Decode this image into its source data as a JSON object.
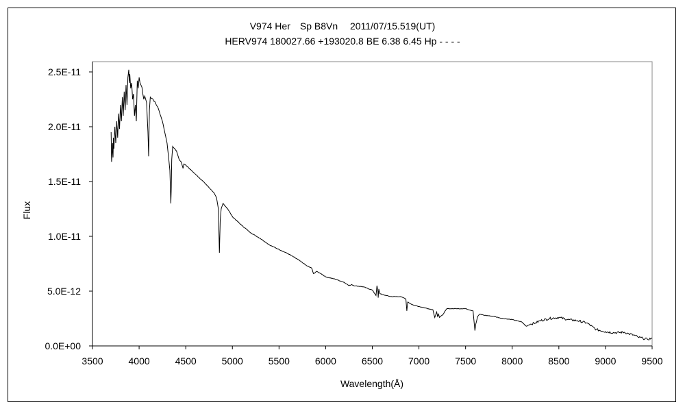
{
  "chart_data": {
    "type": "line",
    "title": "V974 Her　Sp B8Vn　 2011/07/15.519(UT)",
    "subtitle": "HERV974 180027.66 +193020.8 BE 6.38 6.45 Hp - - - -",
    "xlabel": "Wavelength(Å)",
    "ylabel": "Flux",
    "xlim": [
      3500,
      9500
    ],
    "ylim": [
      0,
      2.5e-11
    ],
    "xticks": [
      "3500",
      "4000",
      "4500",
      "5000",
      "5500",
      "6000",
      "6500",
      "7000",
      "7500",
      "8000",
      "8500",
      "9000",
      "9500"
    ],
    "yticks": [
      "0.0E+00",
      "5.0E-12",
      "1.0E-11",
      "1.5E-11",
      "2.0E-11",
      "2.5E-11"
    ],
    "grid": false,
    "series": [
      {
        "x": [
          3700,
          3705,
          3710,
          3715,
          3720,
          3725,
          3730,
          3740,
          3750,
          3760,
          3770,
          3780,
          3790,
          3800,
          3810,
          3820,
          3830,
          3840,
          3850,
          3860,
          3870,
          3880,
          3889,
          3895,
          3900,
          3910,
          3920,
          3930,
          3940,
          3950,
          3960,
          3970,
          3980,
          3990,
          4000,
          4010,
          4020,
          4030,
          4040,
          4050,
          4060,
          4080,
          4095,
          4102,
          4110,
          4120,
          4150,
          4200,
          4250,
          4300,
          4330,
          4340,
          4345,
          4350,
          4360,
          4380,
          4400,
          4430,
          4450,
          4471,
          4480,
          4500,
          4600,
          4700,
          4800,
          4830,
          4850,
          4861,
          4870,
          4880,
          4900,
          4950,
          5000,
          5100,
          5200,
          5300,
          5400,
          5500,
          5600,
          5700,
          5800,
          5850,
          5870,
          5890,
          5900,
          5950,
          6000,
          6100,
          6200,
          6250,
          6280,
          6300,
          6400,
          6500,
          6540,
          6550,
          6560,
          6563,
          6570,
          6580,
          6600,
          6700,
          6800,
          6860,
          6870,
          6880,
          6900,
          6950,
          7000,
          7100,
          7150,
          7170,
          7190,
          7200,
          7210,
          7220,
          7250,
          7300,
          7400,
          7500,
          7580,
          7600,
          7610,
          7630,
          7650,
          7700,
          7800,
          7900,
          8000,
          8100,
          8150,
          8200,
          8250,
          8300,
          8400,
          8500,
          8600,
          8700,
          8800,
          8900,
          9000,
          9100,
          9200,
          9250,
          9300,
          9350,
          9400,
          9450,
          9500
        ],
        "y": [
          1.95e-11,
          1.68e-11,
          1.75e-11,
          1.85e-11,
          1.72e-11,
          1.9e-11,
          1.8e-11,
          2e-11,
          1.85e-11,
          2.05e-11,
          1.9e-11,
          2.12e-11,
          1.98e-11,
          2.2e-11,
          2.05e-11,
          2.27e-11,
          2.1e-11,
          2.32e-11,
          2.15e-11,
          2.38e-11,
          2.2e-11,
          2.45e-11,
          2.52e-11,
          2.4e-11,
          2.48e-11,
          2.35e-11,
          2.4e-11,
          2.25e-11,
          2.3e-11,
          2.1e-11,
          2.2e-11,
          2.05e-11,
          2.42e-11,
          2.35e-11,
          2.45e-11,
          2.4e-11,
          2.38e-11,
          2.36e-11,
          2.3e-11,
          2.25e-11,
          2.28e-11,
          2.22e-11,
          1.95e-11,
          1.73e-11,
          2.15e-11,
          2.27e-11,
          2.25e-11,
          2.18e-11,
          2.05e-11,
          1.85e-11,
          1.6e-11,
          1.3e-11,
          1.45e-11,
          1.7e-11,
          1.82e-11,
          1.8e-11,
          1.78e-11,
          1.7e-11,
          1.68e-11,
          1.62e-11,
          1.66e-11,
          1.65e-11,
          1.57e-11,
          1.49e-11,
          1.4e-11,
          1.35e-11,
          1.25e-11,
          8.5e-12,
          1.15e-11,
          1.25e-11,
          1.3e-11,
          1.25e-11,
          1.18e-11,
          1.1e-11,
          1.03e-11,
          9.8e-12,
          9.2e-12,
          8.8e-12,
          8.4e-12,
          7.9e-12,
          7.3e-12,
          7.1e-12,
          6.6e-12,
          6.7e-12,
          6.8e-12,
          6.6e-12,
          6.3e-12,
          6.1e-12,
          5.8e-12,
          5.5e-12,
          5.6e-12,
          5.5e-12,
          5.4e-12,
          5.1e-12,
          4.6e-12,
          5.5e-12,
          5e-12,
          4.4e-12,
          5.2e-12,
          4.8e-12,
          4.7e-12,
          4.5e-12,
          4.5e-12,
          4.3e-12,
          3.2e-12,
          4e-12,
          3.9e-12,
          3.7e-12,
          3.6e-12,
          3.4e-12,
          3.3e-12,
          2.6e-12,
          3.1e-12,
          2.7e-12,
          2.9e-12,
          2.6e-12,
          2.8e-12,
          3.4e-12,
          3.4e-12,
          3.4e-12,
          3.2e-12,
          1.4e-12,
          2e-12,
          2.7e-12,
          2.9e-12,
          2.8e-12,
          2.7e-12,
          2.5e-12,
          2.4e-12,
          2.2e-12,
          1.8e-12,
          2e-12,
          2.1e-12,
          2.3e-12,
          2.5e-12,
          2.6e-12,
          2.4e-12,
          2.3e-12,
          2.1e-12,
          1.5e-12,
          1.3e-12,
          1.2e-12,
          1.25e-12,
          1.1e-12,
          1e-12,
          8e-13,
          7e-13,
          6e-13,
          7e-13
        ]
      }
    ]
  }
}
